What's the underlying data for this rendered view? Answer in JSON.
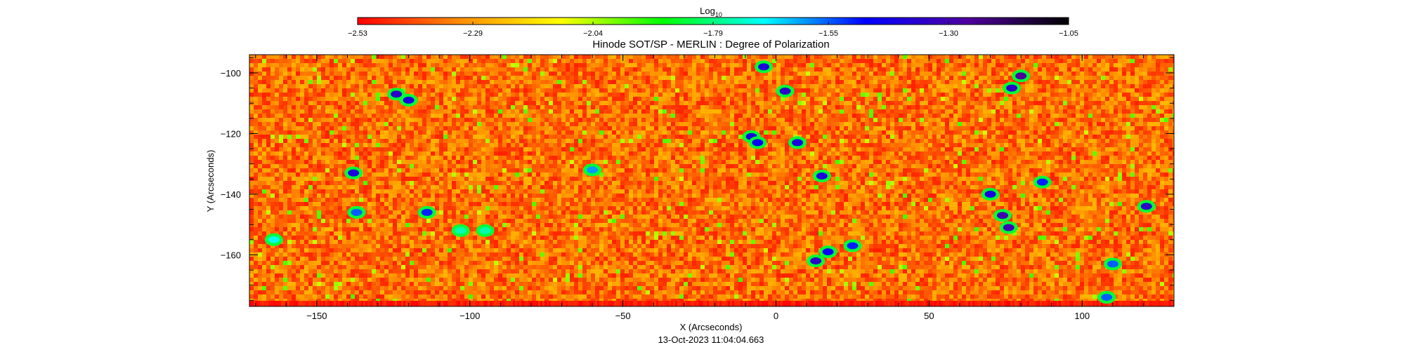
{
  "chart_data": {
    "type": "heatmap",
    "title": "Hinode SOT/SP - MERLIN : Degree of Polarization",
    "xlabel": "X (Arcseconds)",
    "ylabel": "Y (Arcseconds)",
    "timestamp": "13-Oct-2023 11:04:04.663",
    "xlim": [
      -172,
      130
    ],
    "ylim": [
      -177,
      -94
    ],
    "xticks": [
      -150,
      -100,
      -50,
      0,
      50,
      100
    ],
    "yticks": [
      -100,
      -120,
      -140,
      -160
    ],
    "x_tick_labels": [
      "−150",
      "−100",
      "−50",
      "0",
      "50",
      "100"
    ],
    "y_tick_labels": [
      "−100",
      "−120",
      "−140",
      "−160"
    ],
    "colorbar": {
      "label_base": "Log",
      "label_sub": "10",
      "range": [
        -2.53,
        -1.05
      ],
      "ticks": [
        -2.53,
        -2.29,
        -2.04,
        -1.79,
        -1.55,
        -1.3,
        -1.05
      ],
      "tick_labels": [
        "−2.53",
        "−2.29",
        "−2.04",
        "−1.79",
        "−1.55",
        "−1.30",
        "−1.05"
      ],
      "colors": [
        "#ff0000",
        "#ff8c00",
        "#ffff00",
        "#00ff00",
        "#00ffff",
        "#0000ff",
        "#5000a0",
        "#000000"
      ]
    },
    "background_level": -2.36,
    "features": [
      {
        "x": -124,
        "y": -107,
        "level": -1.35
      },
      {
        "x": -120,
        "y": -109,
        "level": -1.4
      },
      {
        "x": -138,
        "y": -133,
        "level": -1.4
      },
      {
        "x": -137,
        "y": -146,
        "level": -1.55
      },
      {
        "x": -114,
        "y": -146,
        "level": -1.5
      },
      {
        "x": -60,
        "y": -132,
        "level": -1.6
      },
      {
        "x": -4,
        "y": -98,
        "level": -1.4
      },
      {
        "x": 3,
        "y": -106,
        "level": -1.35
      },
      {
        "x": -8,
        "y": -121,
        "level": -1.4
      },
      {
        "x": -6,
        "y": -123,
        "level": -1.45
      },
      {
        "x": 7,
        "y": -123,
        "level": -1.4
      },
      {
        "x": 15,
        "y": -134,
        "level": -1.4
      },
      {
        "x": 13,
        "y": -162,
        "level": -1.35
      },
      {
        "x": 17,
        "y": -159,
        "level": -1.45
      },
      {
        "x": 25,
        "y": -157,
        "level": -1.5
      },
      {
        "x": 70,
        "y": -140,
        "level": -1.4
      },
      {
        "x": 74,
        "y": -147,
        "level": -1.3
      },
      {
        "x": 76,
        "y": -151,
        "level": -1.3
      },
      {
        "x": 80,
        "y": -101,
        "level": -1.25
      },
      {
        "x": 77,
        "y": -105,
        "level": -1.35
      },
      {
        "x": 87,
        "y": -136,
        "level": -1.5
      },
      {
        "x": 121,
        "y": -144,
        "level": -1.35
      },
      {
        "x": 110,
        "y": -163,
        "level": -1.55
      },
      {
        "x": 108,
        "y": -174,
        "level": -1.55
      },
      {
        "x": -164,
        "y": -155,
        "level": -1.7
      },
      {
        "x": -103,
        "y": -152,
        "level": -1.75
      },
      {
        "x": -95,
        "y": -152,
        "level": -1.75
      }
    ]
  }
}
